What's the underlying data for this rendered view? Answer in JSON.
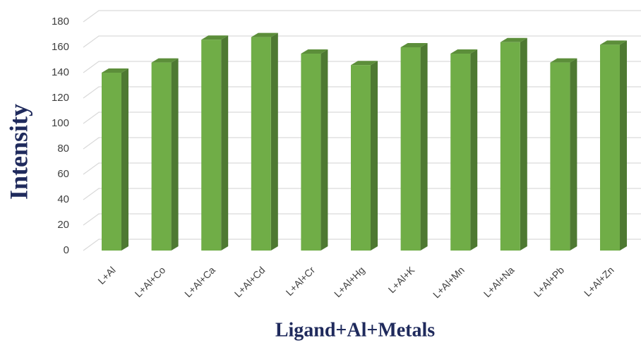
{
  "chart_data": {
    "type": "bar",
    "categories": [
      "L+Al",
      "L+Al+Co",
      "L+Al+Ca",
      "L+Al+Cd",
      "L+Al+Cr",
      "L+Al+Hg",
      "L+Al+K",
      "L+Al+Mn",
      "L+Al+Na",
      "L+Al+Pb",
      "L+Al+Zn"
    ],
    "values": [
      140,
      148,
      166,
      168,
      155,
      146,
      160,
      155,
      164,
      148,
      162
    ],
    "color": "#70ad47",
    "ylim": [
      0,
      180
    ],
    "yticks": [
      0,
      20,
      40,
      60,
      80,
      100,
      120,
      140,
      160,
      180
    ],
    "grid": true,
    "y_label": "Intensity",
    "x_label": "Ligand+Al+Metals"
  }
}
